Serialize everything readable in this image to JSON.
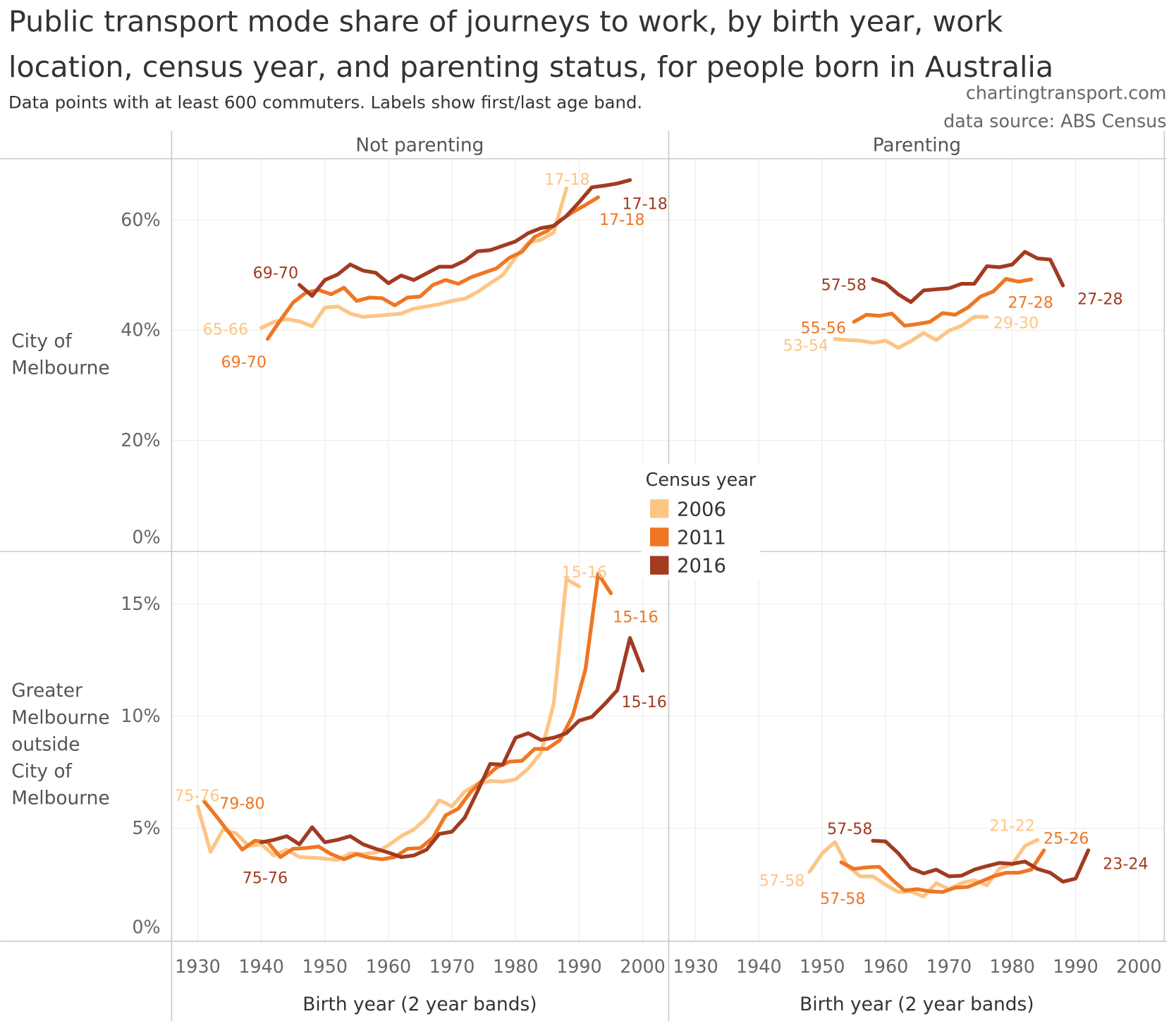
{
  "chart_data": {
    "type": "line",
    "title_lines": [
      "Public transport mode share of journeys to work, by birth year, work",
      "location, census year, and parenting status, for people born in Australia"
    ],
    "subtitle": "Data points with at least 600 commuters. Labels show first/last age band.",
    "credits": [
      "chartingtransport.com",
      "data source: ABS Census"
    ],
    "columns": [
      "Not parenting",
      "Parenting"
    ],
    "x_label": "Birth year (2 year bands)",
    "x_ticks": [
      "1930",
      "1940",
      "1950",
      "1960",
      "1970",
      "1980",
      "1990",
      "2000"
    ],
    "x_range": [
      1930,
      2000
    ],
    "grid": true,
    "legend": {
      "title": "Census year",
      "placement": "center",
      "entries": [
        {
          "name": "2006",
          "color": "#FDC585"
        },
        {
          "name": "2011",
          "color": "#EF7624"
        },
        {
          "name": "2016",
          "color": "#A13B21"
        }
      ]
    },
    "rows": [
      {
        "label_lines": [
          "City of",
          "Melbourne"
        ],
        "y_ticks": [
          "0%",
          "20%",
          "40%",
          "60%"
        ],
        "y_tick_values": [
          0,
          20,
          40,
          60
        ],
        "y_range": [
          0,
          70
        ],
        "y_unit": "%"
      },
      {
        "label_lines": [
          "Greater",
          "Melbourne",
          "outside",
          "City of",
          "Melbourne"
        ],
        "y_ticks": [
          "0%",
          "5%",
          "10%",
          "15%"
        ],
        "y_tick_values": [
          0,
          5,
          10,
          15
        ],
        "y_range": [
          0,
          17
        ],
        "y_unit": "%"
      }
    ],
    "panels": [
      {
        "row": 0,
        "column": 0,
        "series": [
          {
            "name": "2006",
            "color": "#FDC585",
            "first_label": "65-66",
            "last_label": "17-18",
            "x": [
              1940,
              1942,
              1944,
              1946,
              1948,
              1950,
              1952,
              1954,
              1956,
              1958,
              1960,
              1962,
              1964,
              1966,
              1968,
              1970,
              1972,
              1974,
              1976,
              1978,
              1980,
              1982,
              1984,
              1986,
              1988
            ],
            "y": [
              40.4,
              41.5,
              42.0,
              41.6,
              40.7,
              44.1,
              44.3,
              43.0,
              42.4,
              42.6,
              42.8,
              43.0,
              43.9,
              44.3,
              44.7,
              45.3,
              45.7,
              46.9,
              48.5,
              50.0,
              53.2,
              55.9,
              56.4,
              57.7,
              65.7
            ]
          },
          {
            "name": "2011",
            "color": "#EF7624",
            "first_label": "69-70",
            "last_label": "17-18",
            "x": [
              1941,
              1943,
              1945,
              1947,
              1949,
              1951,
              1953,
              1955,
              1957,
              1959,
              1961,
              1963,
              1965,
              1967,
              1969,
              1971,
              1973,
              1975,
              1977,
              1979,
              1981,
              1983,
              1985,
              1987,
              1989,
              1991,
              1993
            ],
            "y": [
              38.4,
              41.8,
              45.0,
              46.8,
              47.3,
              46.5,
              47.7,
              45.3,
              45.9,
              45.8,
              44.5,
              45.9,
              46.1,
              48.2,
              49.1,
              48.4,
              49.6,
              50.4,
              51.2,
              53.1,
              54.2,
              56.9,
              58.0,
              59.9,
              61.4,
              62.7,
              64.1
            ]
          },
          {
            "name": "2016",
            "color": "#A13B21",
            "first_label": "69-70",
            "last_label": "17-18",
            "x": [
              1946,
              1948,
              1950,
              1952,
              1954,
              1956,
              1958,
              1960,
              1962,
              1964,
              1966,
              1968,
              1970,
              1972,
              1974,
              1976,
              1978,
              1980,
              1982,
              1984,
              1986,
              1988,
              1990,
              1992,
              1994,
              1996,
              1998
            ],
            "y": [
              48.2,
              46.2,
              49.1,
              50.1,
              51.9,
              50.8,
              50.4,
              48.5,
              49.9,
              49.1,
              50.3,
              51.5,
              51.5,
              52.6,
              54.3,
              54.5,
              55.3,
              56.1,
              57.6,
              58.5,
              58.9,
              60.7,
              63.2,
              65.9,
              66.2,
              66.6,
              67.2
            ]
          }
        ]
      },
      {
        "row": 0,
        "column": 1,
        "series": [
          {
            "name": "2006",
            "color": "#FDC585",
            "first_label": "53-54",
            "last_label": "29-30",
            "x": [
              1952,
              1954,
              1956,
              1958,
              1960,
              1962,
              1964,
              1966,
              1968,
              1970,
              1972,
              1974,
              1976
            ],
            "y": [
              38.4,
              38.2,
              38.1,
              37.7,
              38.1,
              36.8,
              38.0,
              39.5,
              38.2,
              39.9,
              40.8,
              42.4,
              42.4
            ]
          },
          {
            "name": "2011",
            "color": "#EF7624",
            "first_label": "55-56",
            "last_label": "27-28",
            "x": [
              1955,
              1957,
              1959,
              1961,
              1963,
              1965,
              1967,
              1969,
              1971,
              1973,
              1975,
              1977,
              1979,
              1981,
              1983
            ],
            "y": [
              41.5,
              42.8,
              42.6,
              43.0,
              40.8,
              41.1,
              41.5,
              43.1,
              42.8,
              44.1,
              46.1,
              47.0,
              49.3,
              48.8,
              49.2
            ]
          },
          {
            "name": "2016",
            "color": "#A13B21",
            "first_label": "57-58",
            "last_label": "27-28",
            "x": [
              1958,
              1960,
              1962,
              1964,
              1966,
              1968,
              1970,
              1972,
              1974,
              1976,
              1978,
              1980,
              1982,
              1984,
              1986,
              1988
            ],
            "y": [
              49.3,
              48.5,
              46.5,
              45.1,
              47.2,
              47.4,
              47.6,
              48.4,
              48.4,
              51.6,
              51.4,
              51.9,
              54.2,
              53.0,
              52.8,
              48.1
            ]
          }
        ]
      },
      {
        "row": 1,
        "column": 0,
        "series": [
          {
            "name": "2006",
            "color": "#FDC585",
            "first_label": "75-76",
            "last_label": "15-16",
            "x": [
              1930,
              1932,
              1934,
              1936,
              1938,
              1940,
              1942,
              1944,
              1946,
              1948,
              1950,
              1952,
              1954,
              1956,
              1958,
              1960,
              1962,
              1964,
              1966,
              1968,
              1970,
              1972,
              1974,
              1976,
              1978,
              1980,
              1982,
              1984,
              1986,
              1988,
              1990
            ],
            "y": [
              5.98,
              3.95,
              4.95,
              4.78,
              4.22,
              4.29,
              3.79,
              4.05,
              3.72,
              3.69,
              3.65,
              3.59,
              3.89,
              3.85,
              3.92,
              4.25,
              4.65,
              4.95,
              5.45,
              6.25,
              5.98,
              6.64,
              6.98,
              7.11,
              7.08,
              7.18,
              7.67,
              8.37,
              10.56,
              16.11,
              15.78
            ]
          },
          {
            "name": "2011",
            "color": "#EF7624",
            "first_label": "79-80",
            "last_label": "15-16",
            "x": [
              1931,
              1933,
              1935,
              1937,
              1939,
              1941,
              1943,
              1945,
              1947,
              1949,
              1951,
              1953,
              1955,
              1957,
              1959,
              1961,
              1963,
              1965,
              1967,
              1969,
              1971,
              1973,
              1975,
              1977,
              1979,
              1981,
              1983,
              1985,
              1987,
              1989,
              1991,
              1993,
              1995
            ],
            "y": [
              6.21,
              5.51,
              4.78,
              4.05,
              4.45,
              4.39,
              3.72,
              4.09,
              4.12,
              4.19,
              3.85,
              3.62,
              3.85,
              3.69,
              3.62,
              3.72,
              4.09,
              4.12,
              4.58,
              5.58,
              5.88,
              6.64,
              7.21,
              7.71,
              7.97,
              8.01,
              8.54,
              8.54,
              8.94,
              10.03,
              12.09,
              16.35,
              15.48
            ]
          },
          {
            "name": "2016",
            "color": "#A13B21",
            "first_label": "75-76",
            "last_label": "15-16",
            "x": [
              1940,
              1942,
              1944,
              1946,
              1948,
              1950,
              1952,
              1954,
              1956,
              1958,
              1960,
              1962,
              1964,
              1966,
              1968,
              1970,
              1972,
              1974,
              1976,
              1978,
              1980,
              1982,
              1984,
              1986,
              1988,
              1990,
              1992,
              1994,
              1996,
              1998,
              2000
            ],
            "y": [
              4.38,
              4.49,
              4.65,
              4.29,
              5.05,
              4.38,
              4.49,
              4.65,
              4.29,
              4.09,
              3.92,
              3.72,
              3.79,
              4.05,
              4.75,
              4.85,
              5.48,
              6.64,
              7.87,
              7.84,
              9.04,
              9.24,
              8.94,
              9.04,
              9.24,
              9.8,
              9.97,
              10.53,
              11.16,
              13.49,
              12.03
            ]
          }
        ]
      },
      {
        "row": 1,
        "column": 1,
        "series": [
          {
            "name": "2006",
            "color": "#FDC585",
            "first_label": "57-58",
            "last_label": "21-22",
            "x": [
              1948,
              1950,
              1952,
              1954,
              1956,
              1958,
              1960,
              1962,
              1964,
              1966,
              1968,
              1970,
              1972,
              1974,
              1976,
              1978,
              1980,
              1982,
              1984
            ],
            "y": [
              3.06,
              3.89,
              4.39,
              3.32,
              2.86,
              2.86,
              2.49,
              2.16,
              2.19,
              1.96,
              2.56,
              2.29,
              2.56,
              2.69,
              2.46,
              3.22,
              3.39,
              4.22,
              4.49
            ]
          },
          {
            "name": "2011",
            "color": "#EF7624",
            "first_label": "57-58",
            "last_label": "25-26",
            "x": [
              1953,
              1955,
              1957,
              1959,
              1961,
              1963,
              1965,
              1967,
              1969,
              1971,
              1973,
              1975,
              1977,
              1979,
              1981,
              1983,
              1985
            ],
            "y": [
              3.49,
              3.19,
              3.26,
              3.29,
              2.72,
              2.23,
              2.29,
              2.19,
              2.16,
              2.36,
              2.39,
              2.62,
              2.86,
              3.02,
              3.02,
              3.16,
              4.02
            ]
          },
          {
            "name": "2016",
            "color": "#A13B21",
            "first_label": "57-58",
            "last_label": "23-24",
            "x": [
              1958,
              1960,
              1962,
              1964,
              1966,
              1968,
              1970,
              1972,
              1974,
              1976,
              1978,
              1980,
              1982,
              1984,
              1986,
              1988,
              1990,
              1992
            ],
            "y": [
              4.45,
              4.42,
              3.89,
              3.22,
              2.99,
              3.16,
              2.86,
              2.89,
              3.16,
              3.32,
              3.46,
              3.42,
              3.52,
              3.19,
              3.02,
              2.62,
              2.76,
              4.02
            ]
          }
        ]
      }
    ]
  }
}
